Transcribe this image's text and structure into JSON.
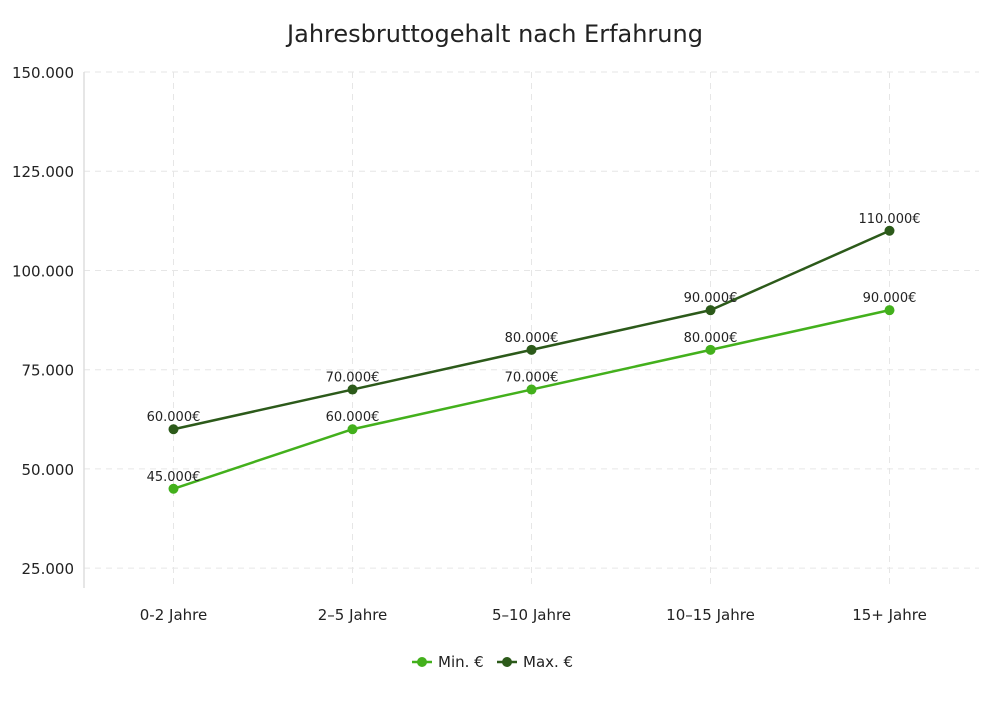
{
  "chart_data": {
    "type": "line",
    "title": "Jahresbruttogehalt nach Erfahrung",
    "xlabel": "",
    "ylabel": "",
    "categories": [
      "0-2 Jahre",
      "2–5 Jahre",
      "5–10 Jahre",
      "10–15 Jahre",
      "15+ Jahre"
    ],
    "ylim": [
      20000,
      150000
    ],
    "yticks": [
      25000,
      50000,
      75000,
      100000,
      125000,
      150000
    ],
    "ytick_labels": [
      "25.000",
      "50.000",
      "75.000",
      "100.000",
      "125.000",
      "150.000"
    ],
    "grid": true,
    "legend_position": "bottom",
    "series": [
      {
        "name": "Min. €",
        "color": "#43b01c",
        "values": [
          45000,
          60000,
          70000,
          80000,
          90000
        ],
        "labels": [
          "45.000€",
          "60.000€",
          "70.000€",
          "80.000€",
          "90.000€"
        ]
      },
      {
        "name": "Max. €",
        "color": "#2c5a1a",
        "values": [
          60000,
          70000,
          80000,
          90000,
          110000
        ],
        "labels": [
          "60.000€",
          "70.000€",
          "80.000€",
          "90.000€",
          "110.000€"
        ]
      }
    ]
  }
}
